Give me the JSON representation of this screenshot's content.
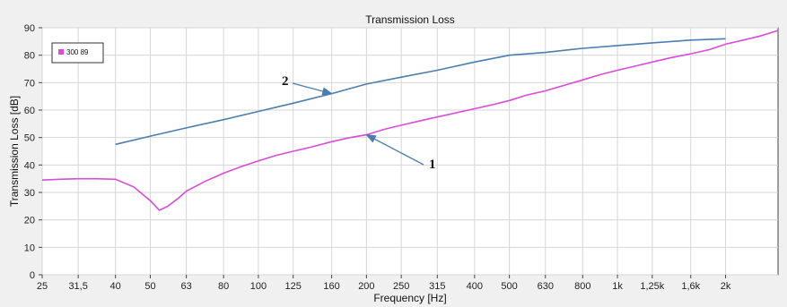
{
  "chart_data": {
    "type": "line",
    "title": "Transmission Loss",
    "xlabel": "Frequency [Hz]",
    "ylabel": "Transmission Loss [dB]",
    "x_scale": "log",
    "xlim": [
      25,
      2800
    ],
    "ylim": [
      0,
      90
    ],
    "grid": true,
    "x_ticks": [
      "25",
      "31,5",
      "40",
      "50",
      "63",
      "80",
      "100",
      "125",
      "160",
      "200",
      "250",
      "315",
      "400",
      "500",
      "630",
      "800",
      "1k",
      "1,25k",
      "1,6k",
      "2k"
    ],
    "x_tick_values": [
      25,
      31.5,
      40,
      50,
      63,
      80,
      100,
      125,
      160,
      200,
      250,
      315,
      400,
      500,
      630,
      800,
      1000,
      1250,
      1600,
      2000
    ],
    "y_ticks": [
      0,
      10,
      20,
      30,
      40,
      50,
      60,
      70,
      80,
      90
    ],
    "legend": {
      "position": "top-left",
      "entries": [
        "300 89"
      ]
    },
    "annotations": [
      {
        "text": "2",
        "target_series": 1
      },
      {
        "text": "1",
        "target_series": 0
      }
    ],
    "series": [
      {
        "name": "300 89",
        "color": "#d94bd9",
        "x": [
          25,
          28,
          31.5,
          35.5,
          40,
          45,
          50,
          53,
          56,
          60,
          63,
          71,
          80,
          90,
          100,
          112,
          125,
          140,
          160,
          180,
          200,
          224,
          250,
          280,
          315,
          355,
          400,
          450,
          500,
          560,
          630,
          710,
          800,
          900,
          1000,
          1120,
          1250,
          1400,
          1600,
          1800,
          2000,
          2240,
          2500,
          2800
        ],
        "y": [
          34.5,
          34.8,
          35,
          35,
          34.8,
          32,
          27,
          23.5,
          25,
          28,
          30.5,
          34,
          37,
          39.5,
          41.5,
          43.5,
          45,
          46.5,
          48.5,
          50,
          51,
          53,
          54.5,
          56,
          57.5,
          59,
          60.5,
          62,
          63.5,
          65.5,
          67,
          69,
          71,
          73,
          74.5,
          76,
          77.5,
          79,
          80.5,
          82,
          84,
          85.5,
          87,
          89
        ]
      },
      {
        "name": "",
        "color": "#4a7db0",
        "x": [
          40,
          50,
          63,
          80,
          100,
          125,
          160,
          200,
          250,
          315,
          400,
          500,
          630,
          800,
          1000,
          1250,
          1600,
          2000
        ],
        "y": [
          47.5,
          50.5,
          53.5,
          56.5,
          59.5,
          62.5,
          66,
          69.5,
          72,
          74.5,
          77.5,
          80,
          81,
          82.5,
          83.5,
          84.5,
          85.5,
          86
        ]
      }
    ]
  }
}
